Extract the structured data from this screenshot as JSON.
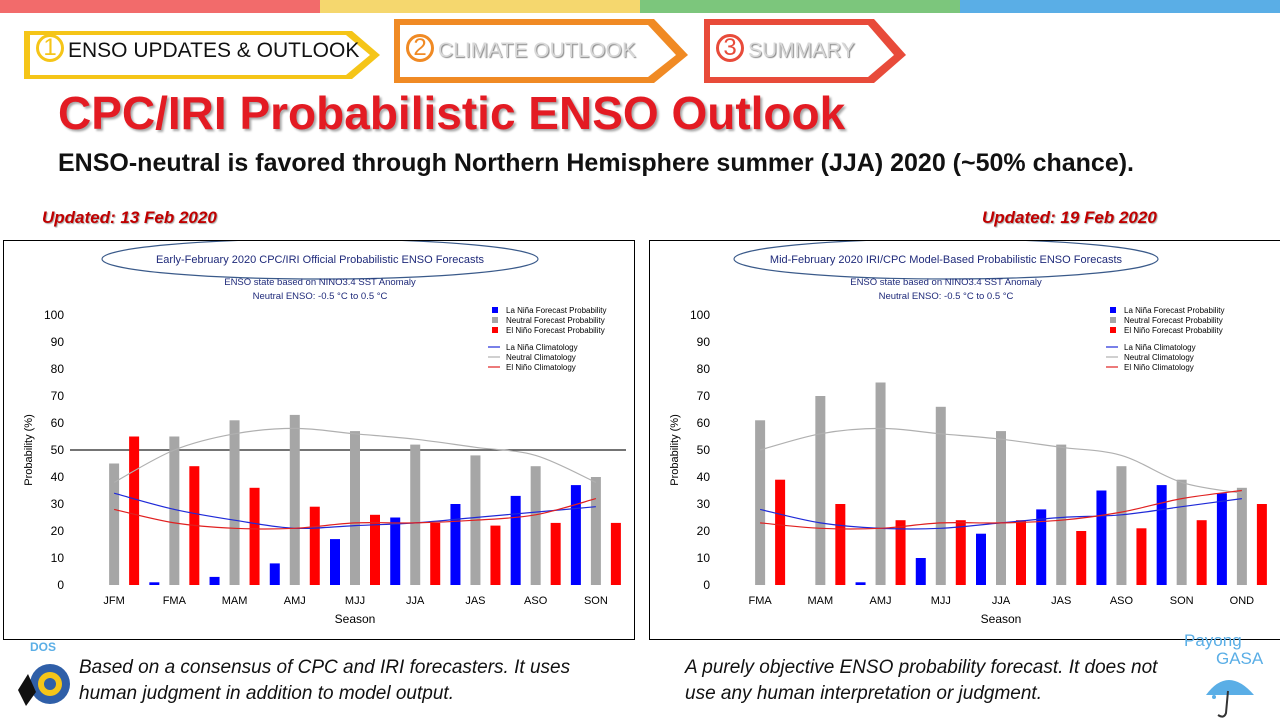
{
  "colors": {
    "strip": [
      "#f26b6b",
      "#f5d76e",
      "#7cc67c",
      "#5aaee6"
    ],
    "title": "#e31b23",
    "updated": "#c00000",
    "la_nina": "#0000ff",
    "neutral": "#a6a6a6",
    "el_nino": "#ff0000"
  },
  "nav": {
    "tabs": [
      {
        "num": "1",
        "label": "ENSO UPDATES & OUTLOOK",
        "color": "#f5c518",
        "active": true
      },
      {
        "num": "2",
        "label": "CLIMATE OUTLOOK",
        "color": "#f08a24",
        "active": false
      },
      {
        "num": "3",
        "label": "SUMMARY",
        "color": "#e84b3a",
        "active": false
      }
    ]
  },
  "slide": {
    "title": "CPC/IRI Probabilistic ENSO Outlook",
    "subtitle": "ENSO-neutral is favored through Northern Hemisphere summer (JJA) 2020 (~50% chance).",
    "left_updated": "Updated: 13 Feb 2020",
    "right_updated": "Updated: 19 Feb 2020",
    "left_caption": "Based on a consensus of CPC and IRI forecasters. It uses human judgment in addition to model output.",
    "right_caption": "A purely objective ENSO probability forecast. It does not use any human interpretation or judgment.",
    "logo_left_text": "DOS",
    "logo_right_text1": "Payong",
    "logo_right_text2": "GASA"
  },
  "chart_data": [
    {
      "type": "bar",
      "title": "Early-February 2020 CPC/IRI Official Probabilistic ENSO Forecasts",
      "subtitle1": "ENSO state based on NINO3.4 SST Anomaly",
      "subtitle2": "Neutral ENSO: -0.5 °C to 0.5 °C",
      "xlabel": "Season",
      "ylabel": "Probability (%)",
      "ylim": [
        0,
        100
      ],
      "yticks": [
        0,
        10,
        20,
        30,
        40,
        50,
        60,
        70,
        80,
        90,
        100
      ],
      "reference_line": 50,
      "legend": [
        "La Niña Forecast Probability",
        "Neutral Forecast Probability",
        "El Niño Forecast Probability",
        "La Niña Climatology",
        "Neutral Climatology",
        "El Niño Climatology"
      ],
      "categories": [
        "JFM",
        "FMA",
        "MAM",
        "AMJ",
        "MJJ",
        "JJA",
        "JAS",
        "ASO",
        "SON"
      ],
      "series": [
        {
          "name": "La Niña Forecast Probability",
          "values": [
            0,
            1,
            3,
            8,
            17,
            25,
            30,
            33,
            37
          ]
        },
        {
          "name": "Neutral Forecast Probability",
          "values": [
            45,
            55,
            61,
            63,
            57,
            52,
            48,
            44,
            40
          ]
        },
        {
          "name": "El Niño Forecast Probability",
          "values": [
            55,
            44,
            36,
            29,
            26,
            23,
            22,
            23,
            23
          ]
        }
      ],
      "climatology": [
        {
          "name": "La Niña Climatology",
          "values": [
            34,
            28,
            24,
            21,
            22,
            23,
            25,
            27,
            29
          ]
        },
        {
          "name": "Neutral Climatology",
          "values": [
            38,
            50,
            56,
            58,
            56,
            54,
            51,
            48,
            38
          ]
        },
        {
          "name": "El Niño Climatology",
          "values": [
            28,
            23,
            21,
            21,
            23,
            23,
            24,
            26,
            32
          ]
        }
      ]
    },
    {
      "type": "bar",
      "title": "Mid-February 2020 IRI/CPC Model-Based Probabilistic ENSO Forecasts",
      "subtitle1": "ENSO state based on NINO3.4 SST Anomaly",
      "subtitle2": "Neutral ENSO: -0.5 °C to 0.5 °C",
      "xlabel": "Season",
      "ylabel": "Probability (%)",
      "ylim": [
        0,
        100
      ],
      "yticks": [
        0,
        10,
        20,
        30,
        40,
        50,
        60,
        70,
        80,
        90,
        100
      ],
      "reference_line": null,
      "legend": [
        "La Niña Forecast Probability",
        "Neutral Forecast Probability",
        "El Niño Forecast Probability",
        "La Niña Climatology",
        "Neutral Climatology",
        "El Niño Climatology"
      ],
      "categories": [
        "FMA",
        "MAM",
        "AMJ",
        "MJJ",
        "JJA",
        "JAS",
        "ASO",
        "SON",
        "OND"
      ],
      "series": [
        {
          "name": "La Niña Forecast Probability",
          "values": [
            0,
            0,
            1,
            10,
            19,
            28,
            35,
            37,
            34
          ]
        },
        {
          "name": "Neutral Forecast Probability",
          "values": [
            61,
            70,
            75,
            66,
            57,
            52,
            44,
            39,
            36
          ]
        },
        {
          "name": "El Niño Forecast Probability",
          "values": [
            39,
            30,
            24,
            24,
            24,
            20,
            21,
            24,
            30
          ]
        }
      ],
      "climatology": [
        {
          "name": "La Niña Climatology",
          "values": [
            28,
            23,
            21,
            21,
            23,
            25,
            26,
            29,
            32
          ]
        },
        {
          "name": "Neutral Climatology",
          "values": [
            50,
            56,
            58,
            56,
            54,
            51,
            48,
            38,
            34
          ]
        },
        {
          "name": "El Niño Climatology",
          "values": [
            23,
            21,
            21,
            23,
            23,
            24,
            27,
            32,
            35
          ]
        }
      ]
    }
  ]
}
